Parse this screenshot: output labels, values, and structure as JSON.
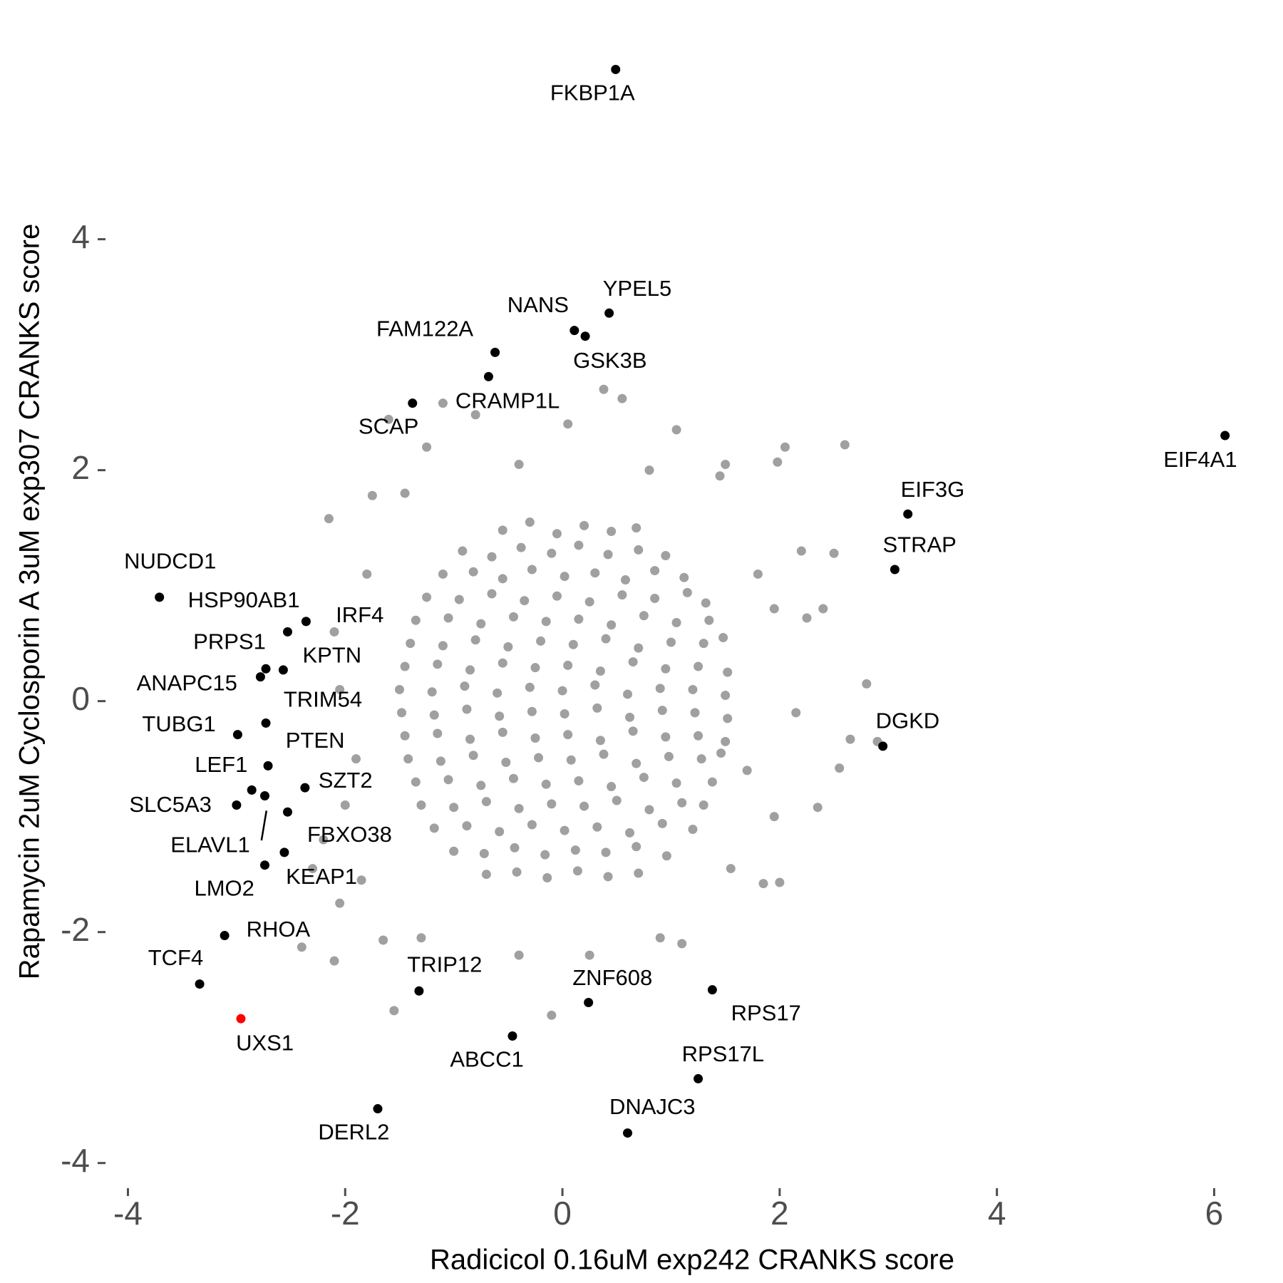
{
  "chart_data": {
    "type": "scatter",
    "xlabel": "Radicicol 0.16uM exp242 CRANKS score",
    "ylabel": "Rapamycin 2uM Cyclosporin A 3uM exp307 CRANKS score",
    "xlim": [
      -4.2,
      6.45
    ],
    "ylim": [
      -4.15,
      5.8
    ],
    "xticks": [
      -4,
      -2,
      0,
      2,
      4,
      6
    ],
    "yticks": [
      -4,
      -2,
      0,
      2,
      4
    ],
    "series": [
      {
        "color": "#a0a0a0",
        "x": [
          -0.55,
          -0.3,
          -0.05,
          0.2,
          0.45,
          0.68,
          -0.92,
          -0.65,
          -0.38,
          -0.1,
          0.15,
          0.42,
          0.7,
          0.95,
          -1.1,
          -0.82,
          -0.55,
          -0.28,
          0.02,
          0.3,
          0.58,
          0.85,
          1.12,
          -1.25,
          -0.95,
          -0.65,
          -0.35,
          -0.05,
          0.25,
          0.55,
          0.85,
          1.15,
          1.32,
          -1.35,
          -1.05,
          -0.75,
          -0.45,
          -0.15,
          0.15,
          0.45,
          0.75,
          1.05,
          1.35,
          -1.4,
          -1.1,
          -0.8,
          -0.5,
          -0.2,
          0.1,
          0.4,
          0.7,
          1.0,
          1.3,
          1.48,
          -1.45,
          -1.15,
          -0.85,
          -0.55,
          -0.25,
          0.05,
          0.35,
          0.65,
          0.95,
          1.25,
          1.52,
          -1.5,
          -1.2,
          -0.9,
          -0.6,
          -0.3,
          0.0,
          0.3,
          0.6,
          0.9,
          1.2,
          1.5,
          -1.48,
          -1.18,
          -0.88,
          -0.58,
          -0.28,
          0.02,
          0.32,
          0.62,
          0.92,
          1.22,
          1.52,
          -1.45,
          -1.15,
          -0.85,
          -0.55,
          -0.25,
          0.05,
          0.35,
          0.65,
          0.95,
          1.25,
          1.5,
          -1.42,
          -1.12,
          -0.82,
          -0.52,
          -0.22,
          0.08,
          0.38,
          0.68,
          0.98,
          1.28,
          1.46,
          -1.35,
          -1.05,
          -0.75,
          -0.45,
          -0.15,
          0.15,
          0.45,
          0.75,
          1.05,
          1.38,
          -1.3,
          -1.0,
          -0.7,
          -0.4,
          -0.1,
          0.2,
          0.5,
          0.8,
          1.1,
          1.3,
          -1.18,
          -0.88,
          -0.58,
          -0.28,
          0.02,
          0.32,
          0.62,
          0.92,
          1.2,
          -1.0,
          -0.72,
          -0.44,
          -0.16,
          0.12,
          0.4,
          0.68,
          0.96,
          -0.7,
          -0.42,
          -0.14,
          0.14,
          0.42,
          0.7,
          0.38,
          0.55,
          -1.1,
          -0.8,
          -1.6,
          0.05,
          1.05,
          2.05,
          2.6,
          1.98,
          -1.25,
          -0.4,
          0.8,
          1.5,
          -1.75,
          -1.45,
          -2.15,
          1.45,
          2.2,
          2.5,
          2.4,
          2.25,
          2.8,
          2.15,
          2.9,
          2.65,
          2.55,
          2.35,
          2.0,
          1.85,
          1.55,
          1.1,
          0.9,
          0.25,
          -0.4,
          -1.3,
          -1.65,
          -2.1,
          -2.4,
          -1.55,
          -0.1,
          -2.3,
          -2.05,
          -1.85,
          -2.2,
          -2.0,
          -1.9,
          -2.05,
          -2.1,
          -1.8,
          1.8,
          1.95,
          1.7,
          1.95
        ],
        "y": [
          1.48,
          1.55,
          1.45,
          1.52,
          1.47,
          1.5,
          1.3,
          1.25,
          1.33,
          1.28,
          1.35,
          1.27,
          1.31,
          1.26,
          1.1,
          1.12,
          1.06,
          1.14,
          1.08,
          1.11,
          1.05,
          1.13,
          1.07,
          0.9,
          0.88,
          0.93,
          0.87,
          0.91,
          0.86,
          0.92,
          0.89,
          0.94,
          0.85,
          0.7,
          0.72,
          0.67,
          0.73,
          0.69,
          0.71,
          0.66,
          0.74,
          0.68,
          0.7,
          0.5,
          0.48,
          0.53,
          0.47,
          0.52,
          0.49,
          0.54,
          0.46,
          0.51,
          0.5,
          0.55,
          0.3,
          0.32,
          0.27,
          0.33,
          0.29,
          0.31,
          0.26,
          0.34,
          0.28,
          0.3,
          0.25,
          0.1,
          0.08,
          0.13,
          0.07,
          0.12,
          0.09,
          0.14,
          0.06,
          0.11,
          0.1,
          0.05,
          -0.1,
          -0.12,
          -0.07,
          -0.13,
          -0.09,
          -0.11,
          -0.06,
          -0.14,
          -0.08,
          -0.1,
          -0.15,
          -0.3,
          -0.28,
          -0.33,
          -0.27,
          -0.32,
          -0.29,
          -0.34,
          -0.26,
          -0.31,
          -0.3,
          -0.35,
          -0.5,
          -0.52,
          -0.47,
          -0.53,
          -0.49,
          -0.51,
          -0.46,
          -0.54,
          -0.48,
          -0.5,
          -0.45,
          -0.7,
          -0.68,
          -0.73,
          -0.67,
          -0.72,
          -0.69,
          -0.74,
          -0.66,
          -0.71,
          -0.7,
          -0.9,
          -0.92,
          -0.87,
          -0.93,
          -0.89,
          -0.91,
          -0.86,
          -0.94,
          -0.88,
          -0.9,
          -1.1,
          -1.08,
          -1.13,
          -1.07,
          -1.12,
          -1.09,
          -1.14,
          -1.06,
          -1.11,
          -1.3,
          -1.32,
          -1.27,
          -1.33,
          -1.29,
          -1.31,
          -1.26,
          -1.34,
          -1.5,
          -1.48,
          -1.53,
          -1.47,
          -1.52,
          -1.49,
          2.7,
          2.62,
          2.58,
          2.48,
          2.44,
          2.4,
          2.35,
          2.2,
          2.22,
          2.07,
          2.2,
          2.05,
          2.0,
          2.05,
          1.78,
          1.8,
          1.58,
          1.95,
          1.3,
          1.28,
          0.8,
          0.72,
          0.15,
          -0.1,
          -0.35,
          -0.33,
          -0.58,
          -0.92,
          -1.57,
          -1.58,
          -1.45,
          -2.1,
          -2.05,
          -2.2,
          -2.2,
          -2.05,
          -2.07,
          -2.25,
          -2.13,
          -2.68,
          -2.72,
          -1.45,
          -1.75,
          -1.55,
          -1.2,
          -0.9,
          -0.5,
          0.1,
          0.6,
          1.1,
          1.1,
          0.8,
          -0.6,
          -1.0
        ]
      },
      {
        "color": "#000000",
        "labels": [
          "FKBP1A",
          "YPEL5",
          "NANS",
          "GSK3B",
          "FAM122A",
          "CRAMP1L",
          "SCAP",
          "EIF4A1",
          "EIF3G",
          "STRAP",
          "NUDCD1",
          "HSP90AB1",
          "IRF4",
          "PRPS1",
          "KPTN",
          "ANAPC15",
          "TRIM54",
          "TUBG1",
          "PTEN",
          "LEF1",
          "SZT2",
          "SLC5A3",
          "ELAVL1",
          "FBXO38",
          "KEAP1",
          "LMO2",
          "RHOA",
          "TCF4",
          "TRIP12",
          "ZNF608",
          "RPS17",
          "ABCC1",
          "RPS17L",
          "DERL2",
          "DNAJC3",
          "DGKD"
        ],
        "x": [
          0.49,
          0.43,
          0.11,
          0.21,
          -0.62,
          -0.68,
          -1.38,
          6.1,
          3.18,
          3.06,
          -3.71,
          -2.53,
          -2.36,
          -2.73,
          -2.57,
          -2.78,
          -2.73,
          -2.99,
          -2.71,
          -2.86,
          -2.37,
          -3.0,
          -2.74,
          -2.53,
          -2.56,
          -2.74,
          -3.11,
          -3.34,
          -1.32,
          0.24,
          1.38,
          -0.46,
          1.25,
          -1.7,
          0.6,
          2.95
        ],
        "y": [
          5.47,
          3.36,
          3.21,
          3.16,
          3.02,
          2.81,
          2.58,
          2.3,
          1.62,
          1.14,
          0.9,
          0.6,
          0.69,
          0.28,
          0.27,
          0.21,
          -0.19,
          -0.29,
          -0.56,
          -0.77,
          -0.75,
          -0.9,
          -0.82,
          -0.96,
          -1.31,
          -1.42,
          -2.03,
          -2.45,
          -2.51,
          -2.61,
          -2.5,
          -2.9,
          -3.27,
          -3.53,
          -3.74,
          -0.39
        ]
      },
      {
        "color": "#ff0000",
        "labels": [
          "UXS1"
        ],
        "x": [
          -2.96
        ],
        "y": [
          -2.75
        ]
      }
    ]
  }
}
